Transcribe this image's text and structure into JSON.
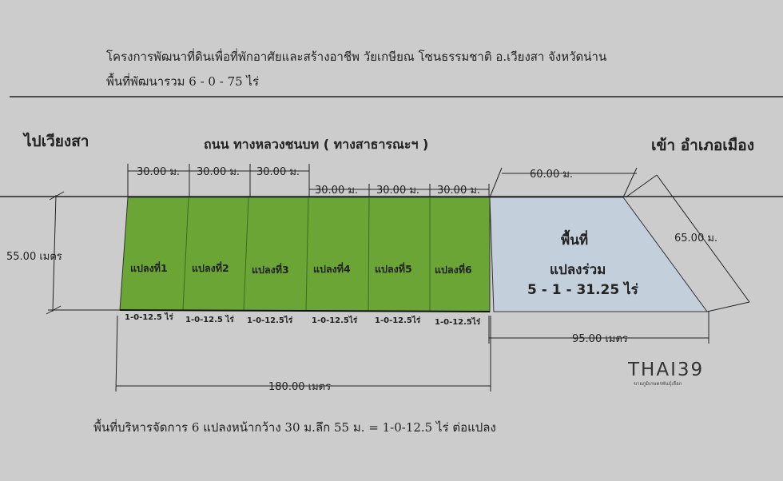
{
  "header": {
    "title": "โครงการพัฒนาที่ดินเพื่อที่พักอาศัยและสร้างอาชีพ วัยเกษียณ โซนธรรมชาติ อ.เวียงสา จังหวัดน่าน",
    "subtitle": "พื้นที่พัฒนารวม 6 - 0 - 75 ไร่"
  },
  "road": {
    "left_direction": "ไปเวียงสา",
    "name": "ถนน ทางหลวงชนบท ( ทางสาธารณะฯ )",
    "right_direction": "เข้า อำเภอเมือง"
  },
  "plots": [
    {
      "label": "แปลงที่1",
      "area": "1-0-12.5 ไร่"
    },
    {
      "label": "แปลงที่2",
      "area": "1-0-12.5 ไร่"
    },
    {
      "label": "แปลงที่3",
      "area": "1-0-12.5ไร่"
    },
    {
      "label": "แปลงที่4",
      "area": "1-0-12.5ไร่"
    },
    {
      "label": "แปลงที่5",
      "area": "1-0-12.5ไร่"
    },
    {
      "label": "แปลงที่6",
      "area": "1-0-12.5ไร่"
    }
  ],
  "common_area": {
    "line1": "พื้นที่",
    "line2": "แปลงร่วม",
    "area": "5 - 1 - 31.25 ไร่"
  },
  "dimensions": {
    "plot_width": "30.00 ม.",
    "depth": "55.00 เมตร",
    "common_front": "60.00 ม.",
    "common_side": "65.00 ม.",
    "common_back": "95.00 เมตร",
    "total": "180.00 เมตร"
  },
  "footer": "พื้นที่บริหารจัดการ 6 แปลงหน้ากว้าง 30 ม.ลึก 55 ม. = 1-0-12.5 ไร่ ต่อแปลง",
  "logo": {
    "text": "THAI39",
    "tagline": "ขายภูมิเกษตรพันธุ์เลือก"
  },
  "colors": {
    "plot_fill": "#6aa536",
    "common_fill": "#c3d0dc",
    "background": "#cccccc"
  }
}
